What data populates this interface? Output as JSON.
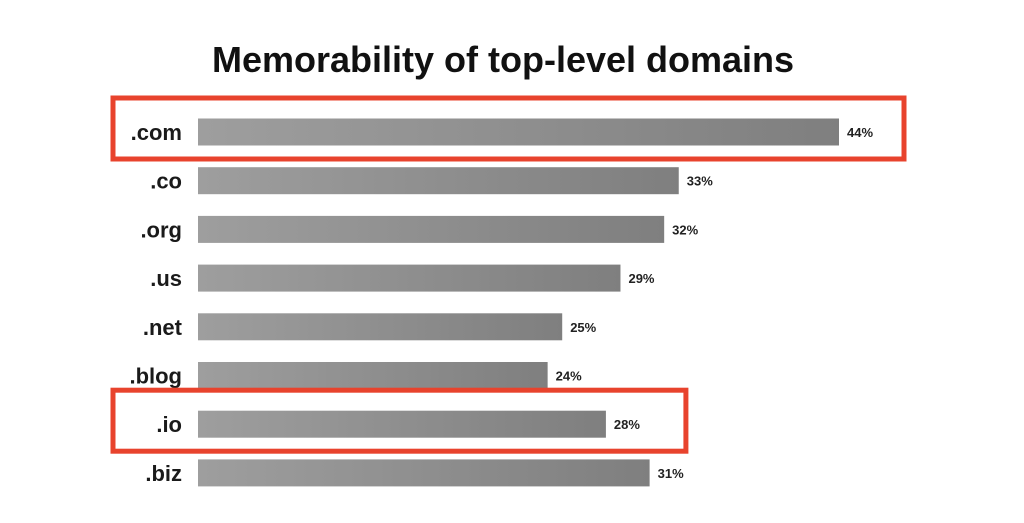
{
  "chart_data": {
    "type": "bar",
    "orientation": "horizontal",
    "title": "Memorability of top-level domains",
    "categories": [
      ".com",
      ".co",
      ".org",
      ".us",
      ".net",
      ".blog",
      ".io",
      ".biz"
    ],
    "values": [
      44,
      33,
      32,
      29,
      25,
      24,
      28,
      31
    ],
    "value_labels": [
      "44%",
      "33%",
      "32%",
      "29%",
      "25%",
      "24%",
      "28%",
      "31%"
    ],
    "unit": "%",
    "xlim": [
      0,
      44
    ],
    "grid": false,
    "legend": "none",
    "highlighted": [
      ".com",
      ".io"
    ]
  },
  "colors": {
    "bar_light": "#9e9e9e",
    "bar_dark": "#7f7f7f",
    "highlight_box": "#e8432d",
    "title": "#111111"
  }
}
